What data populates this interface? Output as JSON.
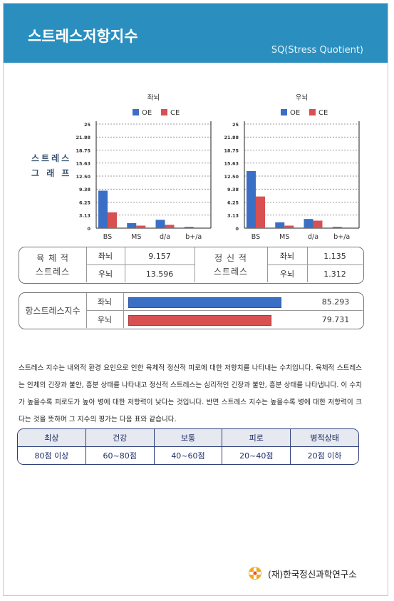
{
  "header": {
    "title": "스트레스저항지수",
    "subtitle": "SQ(Stress Quotient)"
  },
  "graph_label": [
    "스트레스",
    "그 래 프"
  ],
  "chart_data": [
    {
      "type": "bar",
      "title": "좌뇌",
      "categories": [
        "BS",
        "MS",
        "d/a",
        "b+/a"
      ],
      "series": [
        {
          "name": "OE",
          "color": "#3b6fc6",
          "values": [
            9.0,
            1.2,
            2.0,
            0.3
          ]
        },
        {
          "name": "CE",
          "color": "#d85050",
          "values": [
            3.8,
            0.6,
            0.8,
            0.15
          ]
        }
      ],
      "yticks": [
        "0",
        "3.13",
        "6.25",
        "9.38",
        "12.50",
        "15.63",
        "18.75",
        "21.88",
        "25"
      ],
      "ylim": [
        0,
        25
      ],
      "grid": true,
      "legend": "top"
    },
    {
      "type": "bar",
      "title": "우뇌",
      "categories": [
        "BS",
        "MS",
        "d/a",
        "b+/a"
      ],
      "series": [
        {
          "name": "OE",
          "color": "#3b6fc6",
          "values": [
            13.7,
            1.4,
            2.2,
            0.3
          ]
        },
        {
          "name": "CE",
          "color": "#d85050",
          "values": [
            7.6,
            0.6,
            1.8,
            0.15
          ]
        }
      ],
      "yticks": [
        "0",
        "3.13",
        "6.25",
        "9.38",
        "12.50",
        "15.63",
        "18.75",
        "21.88",
        "25"
      ],
      "ylim": [
        0,
        25
      ],
      "grid": true,
      "legend": "top"
    }
  ],
  "stress_table": {
    "physical_label_1": "육 체 적",
    "physical_label_2": "스트레스",
    "mental_label_1": "정 신 적",
    "mental_label_2": "스트레스",
    "left": "좌뇌",
    "right": "우뇌",
    "physical_left": "9.157",
    "physical_right": "13.596",
    "mental_left": "1.135",
    "mental_right": "1.312"
  },
  "resistance": {
    "label": "항스트레스지수",
    "left_label": "좌뇌",
    "right_label": "우뇌",
    "left_value": "85.293",
    "right_value": "79.731",
    "left_fraction": 0.85293,
    "right_fraction": 0.79731,
    "left_color": "#3b6fc6",
    "right_color": "#d85050"
  },
  "description": "스트레스 지수는 내외적 환경 요인으로 인한 육체적 정신적 피로에 대한 저항치를 나타내는 수치입니다. 육체적 스트레스는 인체의 긴장과 불안, 흥분 상태를 나타내고 정신적 스트레스는 심리적인 긴장과 불안, 흥분 상태를 나타냅니다. 이 수치가 높을수록 피로도가 높아 병에 대한 저항력이 낮다는 것입니다. 반면 스트레스 지수는 높을수록 병에 대한 저항력이 크다는 것을 뜻하며 그 지수의 평가는 다음 표와 같습니다.",
  "grade_table": {
    "headers": [
      "최상",
      "건강",
      "보통",
      "피로",
      "병적상태"
    ],
    "values": [
      "80점 이상",
      "60~80점",
      "40~60점",
      "20~40점",
      "20점 이하"
    ]
  },
  "footer": {
    "org": "(재)한국정신과학연구소"
  }
}
